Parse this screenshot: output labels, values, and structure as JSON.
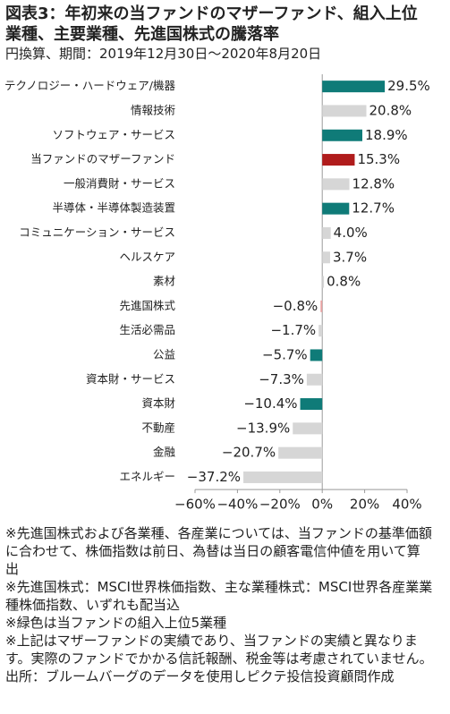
{
  "chart_data": {
    "type": "barh",
    "title": "図表3：年初来の当ファンドのマザーファンド、組入上位業種、主要業種、先進国株式の騰落率",
    "subtitle": "円換算、期間：2019年12月30日～2020年8月20日",
    "categories": [
      "テクノロジー・ハードウェア/機器",
      "情報技術",
      "ソフトウェア・サービス",
      "当ファンドのマザーファンド",
      "一般消費財・サービス",
      "半導体・半導体製造装置",
      "コミュニケーション・サービス",
      "ヘルスケア",
      "素材",
      "先進国株式",
      "生活必需品",
      "公益",
      "資本財・サービス",
      "資本財",
      "不動産",
      "金融",
      "エネルギー"
    ],
    "values": [
      29.5,
      20.8,
      18.9,
      15.3,
      12.8,
      12.7,
      4.0,
      3.7,
      0.8,
      -0.8,
      -1.7,
      -5.7,
      -7.3,
      -10.4,
      -13.9,
      -20.7,
      -37.2
    ],
    "value_labels": [
      "29.5%",
      "20.8%",
      "18.9%",
      "15.3%",
      "12.8%",
      "12.7%",
      "4.0%",
      "3.7%",
      "0.8%",
      "−0.8%",
      "−1.7%",
      "−5.7%",
      "−7.3%",
      "−10.4%",
      "−13.9%",
      "−20.7%",
      "−37.2%"
    ],
    "colors": [
      "#0f7b78",
      "#d6d6d6",
      "#0f7b78",
      "#b01c1c",
      "#d6d6d6",
      "#0f7b78",
      "#d6d6d6",
      "#d6d6d6",
      "#d6d6d6",
      "#e8a0a0",
      "#d6d6d6",
      "#0f7b78",
      "#d6d6d6",
      "#0f7b78",
      "#d6d6d6",
      "#d6d6d6",
      "#d6d6d6"
    ],
    "xlim": [
      -60,
      40
    ],
    "xticks": [
      {
        "value": -60,
        "label": "−60%"
      },
      {
        "value": -40,
        "label": "−40%"
      },
      {
        "value": -20,
        "label": "−20%"
      },
      {
        "value": 0,
        "label": "0%"
      },
      {
        "value": 20,
        "label": "20%"
      },
      {
        "value": 40,
        "label": "40%"
      }
    ],
    "notes": [
      "※先進国株式および各業種、各産業については、当ファンドの基準価額に合わせて、株価指数は前日、為替は当日の顧客電信仲値を用いて算出",
      "※先進国株式：MSCI世界株価指数、主な業種株式：MSCI世界各産業業種株価指数、いずれも配当込",
      "※緑色は当ファンドの組入上位5業種",
      "※上記はマザーファンドの実績であり、当ファンドの実績と異なります。実際のファンドでかかる信託報酬、税金等は考慮されていません。",
      "出所：ブルームバーグのデータを使用しピクテ投信投資顧問作成"
    ]
  }
}
